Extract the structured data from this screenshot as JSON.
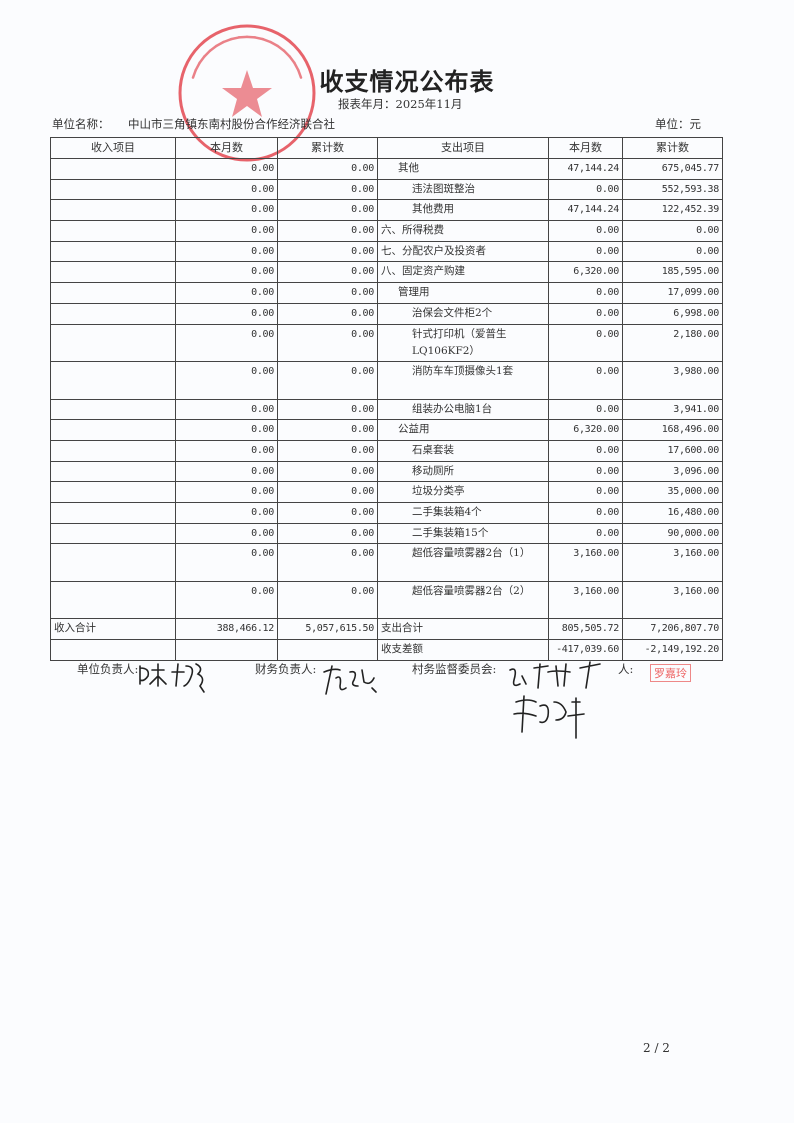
{
  "title": "收支情况公布表",
  "period": "报表年月：2025年11月",
  "unit_name_label": "单位名称：",
  "unit_name": "中山市三角镇东南村股份合作经济联合社",
  "unit": "单位：元",
  "headers": [
    "收入项目",
    "本月数",
    "累计数",
    "支出项目",
    "本月数",
    "累计数"
  ],
  "rows": [
    {
      "income_item": "",
      "income_month": "0.00",
      "income_total": "0.00",
      "expense_item": "其他",
      "level": 1,
      "expense_month": "47,144.24",
      "expense_total": "675,045.77"
    },
    {
      "income_item": "",
      "income_month": "0.00",
      "income_total": "0.00",
      "expense_item": "违法图斑整治",
      "level": 2,
      "expense_month": "0.00",
      "expense_total": "552,593.38"
    },
    {
      "income_item": "",
      "income_month": "0.00",
      "income_total": "0.00",
      "expense_item": "其他费用",
      "level": 2,
      "expense_month": "47,144.24",
      "expense_total": "122,452.39"
    },
    {
      "income_item": "",
      "income_month": "0.00",
      "income_total": "0.00",
      "expense_item": "六、所得税费",
      "level": 0,
      "expense_month": "0.00",
      "expense_total": "0.00"
    },
    {
      "income_item": "",
      "income_month": "0.00",
      "income_total": "0.00",
      "expense_item": "七、分配农户及投资者",
      "level": 0,
      "expense_month": "0.00",
      "expense_total": "0.00"
    },
    {
      "income_item": "",
      "income_month": "0.00",
      "income_total": "0.00",
      "expense_item": "八、固定资产购建",
      "level": 0,
      "expense_month": "6,320.00",
      "expense_total": "185,595.00"
    },
    {
      "income_item": "",
      "income_month": "0.00",
      "income_total": "0.00",
      "expense_item": "管理用",
      "level": 1,
      "expense_month": "0.00",
      "expense_total": "17,099.00"
    },
    {
      "income_item": "",
      "income_month": "0.00",
      "income_total": "0.00",
      "expense_item": "治保会文件柜2个",
      "level": 2,
      "expense_month": "0.00",
      "expense_total": "6,998.00"
    },
    {
      "income_item": "",
      "income_month": "0.00",
      "income_total": "0.00",
      "expense_item": "针式打印机（爱普生LQ106KF2）",
      "level": 2,
      "tall": true,
      "expense_month": "0.00",
      "expense_total": "2,180.00"
    },
    {
      "income_item": "",
      "income_month": "0.00",
      "income_total": "0.00",
      "expense_item": "消防车车顶摄像头1套",
      "level": 2,
      "tall": true,
      "expense_month": "0.00",
      "expense_total": "3,980.00"
    },
    {
      "income_item": "",
      "income_month": "0.00",
      "income_total": "0.00",
      "expense_item": "组装办公电脑1台",
      "level": 2,
      "expense_month": "0.00",
      "expense_total": "3,941.00"
    },
    {
      "income_item": "",
      "income_month": "0.00",
      "income_total": "0.00",
      "expense_item": "公益用",
      "level": 1,
      "expense_month": "6,320.00",
      "expense_total": "168,496.00"
    },
    {
      "income_item": "",
      "income_month": "0.00",
      "income_total": "0.00",
      "expense_item": "石桌套装",
      "level": 2,
      "expense_month": "0.00",
      "expense_total": "17,600.00"
    },
    {
      "income_item": "",
      "income_month": "0.00",
      "income_total": "0.00",
      "expense_item": "移动厕所",
      "level": 2,
      "expense_month": "0.00",
      "expense_total": "3,096.00"
    },
    {
      "income_item": "",
      "income_month": "0.00",
      "income_total": "0.00",
      "expense_item": "垃圾分类亭",
      "level": 2,
      "expense_month": "0.00",
      "expense_total": "35,000.00"
    },
    {
      "income_item": "",
      "income_month": "0.00",
      "income_total": "0.00",
      "expense_item": "二手集装箱4个",
      "level": 2,
      "expense_month": "0.00",
      "expense_total": "16,480.00"
    },
    {
      "income_item": "",
      "income_month": "0.00",
      "income_total": "0.00",
      "expense_item": "二手集装箱15个",
      "level": 2,
      "expense_month": "0.00",
      "expense_total": "90,000.00"
    },
    {
      "income_item": "",
      "income_month": "0.00",
      "income_total": "0.00",
      "expense_item": "超低容量喷雾器2台（1）",
      "level": 2,
      "tall": true,
      "expense_month": "3,160.00",
      "expense_total": "3,160.00"
    },
    {
      "income_item": "",
      "income_month": "0.00",
      "income_total": "0.00",
      "expense_item": "超低容量喷雾器2台（2）",
      "level": 2,
      "tall": true,
      "expense_month": "3,160.00",
      "expense_total": "3,160.00"
    },
    {
      "income_item": "收入合计",
      "income_month": "388,466.12",
      "income_total": "5,057,615.50",
      "expense_item": "支出合计",
      "level": -1,
      "expense_month": "805,505.72",
      "expense_total": "7,206,807.70"
    },
    {
      "income_item": "",
      "income_month": "",
      "income_total": "",
      "expense_item": "收支差额",
      "level": -1,
      "expense_month": "-417,039.60",
      "expense_total": "-2,149,192.20"
    }
  ],
  "signatures": {
    "unit_head_label": "单位负责人:",
    "finance_head_label": "财务负责人:",
    "supervision_label": "村务监督委员会:",
    "preparer_label": "人:",
    "preparer_stamp": "罗嘉玲"
  },
  "stamp_text": "中山市三角镇东南村股份合作经济联合社",
  "page_number": "2 / 2",
  "colors": {
    "stamp_red": "#e0303a",
    "ink": "#333333"
  }
}
